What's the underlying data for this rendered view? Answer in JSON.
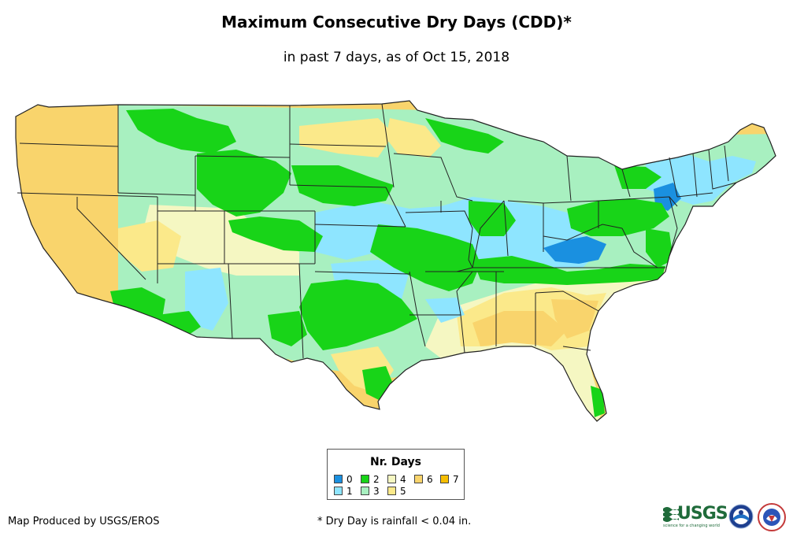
{
  "title": "Maximum Consecutive Dry Days (CDD)*",
  "subtitle": "in past 7 days, as of Oct 15, 2018",
  "legend": {
    "title": "Nr. Days",
    "items": [
      {
        "label": "0",
        "color": "#1a90e0"
      },
      {
        "label": "1",
        "color": "#8ee5ff"
      },
      {
        "label": "2",
        "color": "#18d418"
      },
      {
        "label": "3",
        "color": "#a8f0c0"
      },
      {
        "label": "4",
        "color": "#f5f7c2"
      },
      {
        "label": "5",
        "color": "#fbe98a"
      },
      {
        "label": "6",
        "color": "#f9d46c"
      },
      {
        "label": "7",
        "color": "#f6be00"
      }
    ]
  },
  "footer": {
    "producer": "Map Produced by USGS/EROS",
    "note": "* Dry Day is rainfall < 0.04 in."
  },
  "logos": {
    "usgs": "USGS",
    "usgs_tagline": "science for a changing world",
    "noaa_icon": "noaa-logo-icon",
    "nws_icon": "nws-logo-icon"
  }
}
